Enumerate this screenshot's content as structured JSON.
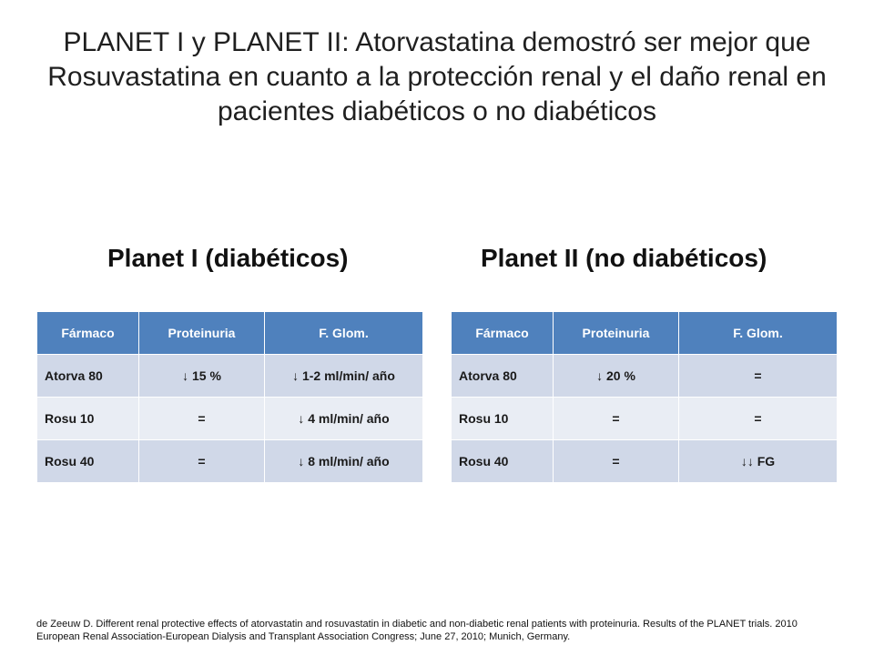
{
  "title": "PLANET I y PLANET II: Atorvastatina demostró ser mejor que Rosuvastatina en cuanto a la protección renal y el daño renal en pacientes diabéticos o no diabéticos",
  "tables": [
    {
      "heading": "Planet I (diabéticos)",
      "columns": [
        "Fármaco",
        "Proteinuria",
        "F. Glom."
      ],
      "rows": [
        [
          "Atorva 80",
          "↓ 15 %",
          "↓ 1-2 ml/min/ año"
        ],
        [
          "Rosu 10",
          "=",
          "↓ 4 ml/min/ año"
        ],
        [
          "Rosu 40",
          "=",
          "↓ 8 ml/min/ año"
        ]
      ]
    },
    {
      "heading": "Planet II (no diabéticos)",
      "columns": [
        "Fármaco",
        "Proteinuria",
        "F. Glom."
      ],
      "rows": [
        [
          "Atorva 80",
          "↓  20 %",
          "="
        ],
        [
          "Rosu 10",
          "=",
          "="
        ],
        [
          "Rosu 40",
          "=",
          "↓↓  FG"
        ]
      ]
    }
  ],
  "footnote": "de Zeeuw D. Different renal protective effects of atorvastatin and rosuvastatin in diabetic and non-diabetic renal patients with proteinuria. Results of the PLANET trials. 2010 European Renal Association-European Dialysis and Transplant Association Congress; June 27, 2010; Munich, Germany.",
  "colors": {
    "header": "#4f81bd",
    "row_odd": "#d0d8e8",
    "row_even": "#e9edf4"
  }
}
